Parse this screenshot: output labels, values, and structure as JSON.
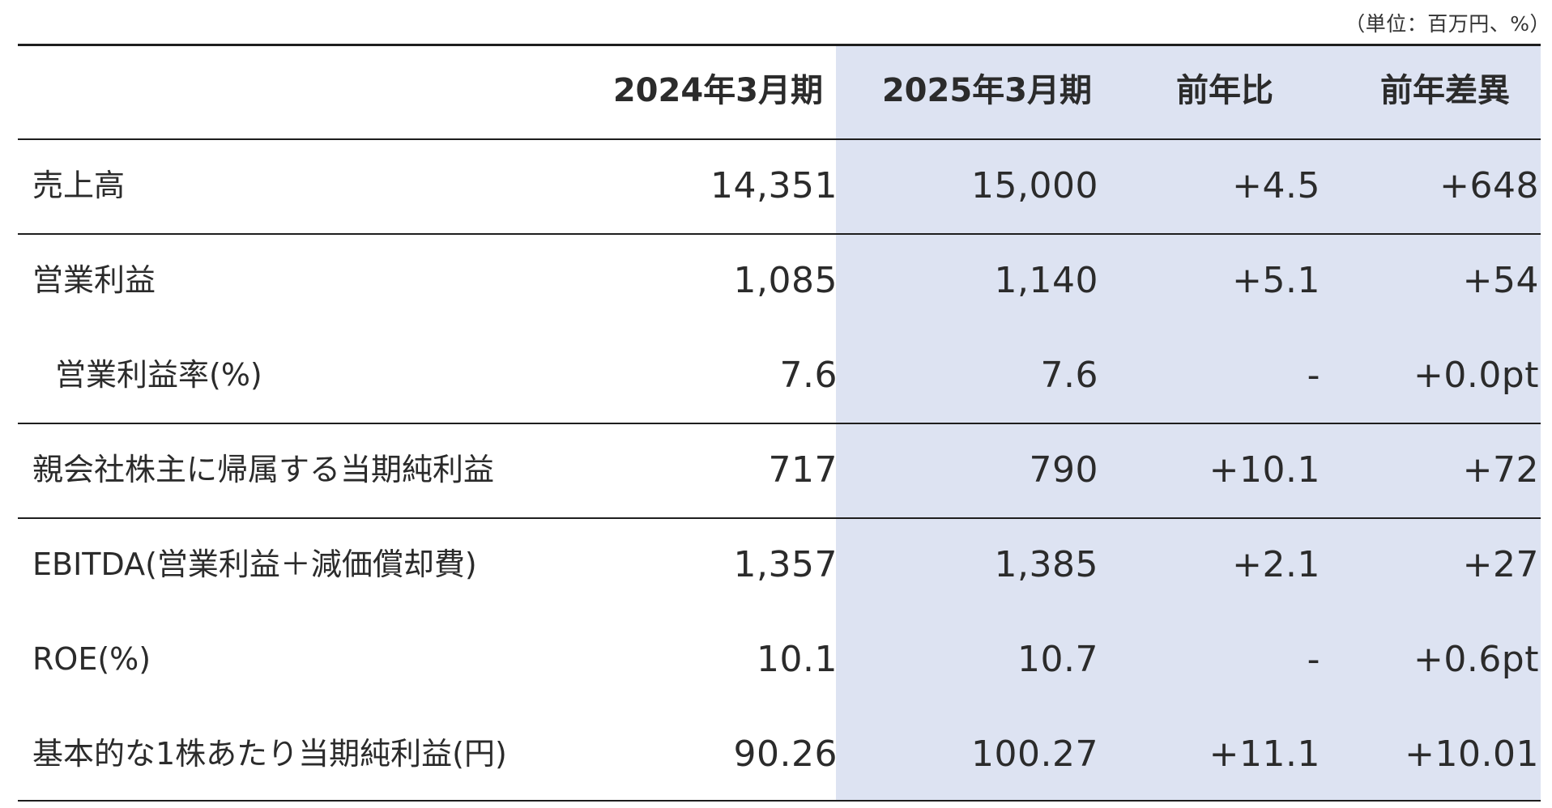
{
  "unit_note": "（単位：百万円、%）",
  "colors": {
    "highlight": "#dde3f2",
    "rule": "#1e1e1e",
    "text": "#2b2b2b"
  },
  "header": {
    "label": "",
    "col1": "2024年3月期",
    "col2": "2025年3月期",
    "col3": "前年比",
    "col4": "前年差異"
  },
  "rows": [
    {
      "label": "売上高",
      "v2024": "14,351",
      "v2025": "15,000",
      "yoy": "+4.5",
      "diff": "+648"
    },
    {
      "label": "営業利益",
      "v2024": "1,085",
      "v2025": "1,140",
      "yoy": "+5.1",
      "diff": "+54"
    },
    {
      "label": "営業利益率(%)",
      "v2024": "7.6",
      "v2025": "7.6",
      "yoy": "-",
      "diff": "+0.0pt"
    },
    {
      "label": "親会社株主に帰属する当期純利益",
      "v2024": "717",
      "v2025": "790",
      "yoy": "+10.1",
      "diff": "+72"
    },
    {
      "label": "EBITDA(営業利益＋減価償却費)",
      "v2024": "1,357",
      "v2025": "1,385",
      "yoy": "+2.1",
      "diff": "+27"
    },
    {
      "label": "ROE(%)",
      "v2024": "10.1",
      "v2025": "10.7",
      "yoy": "-",
      "diff": "+0.6pt"
    },
    {
      "label": "基本的な1株あたり当期純利益(円)",
      "v2024": "90.26",
      "v2025": "100.27",
      "yoy": "+11.1",
      "diff": "+10.01"
    }
  ]
}
